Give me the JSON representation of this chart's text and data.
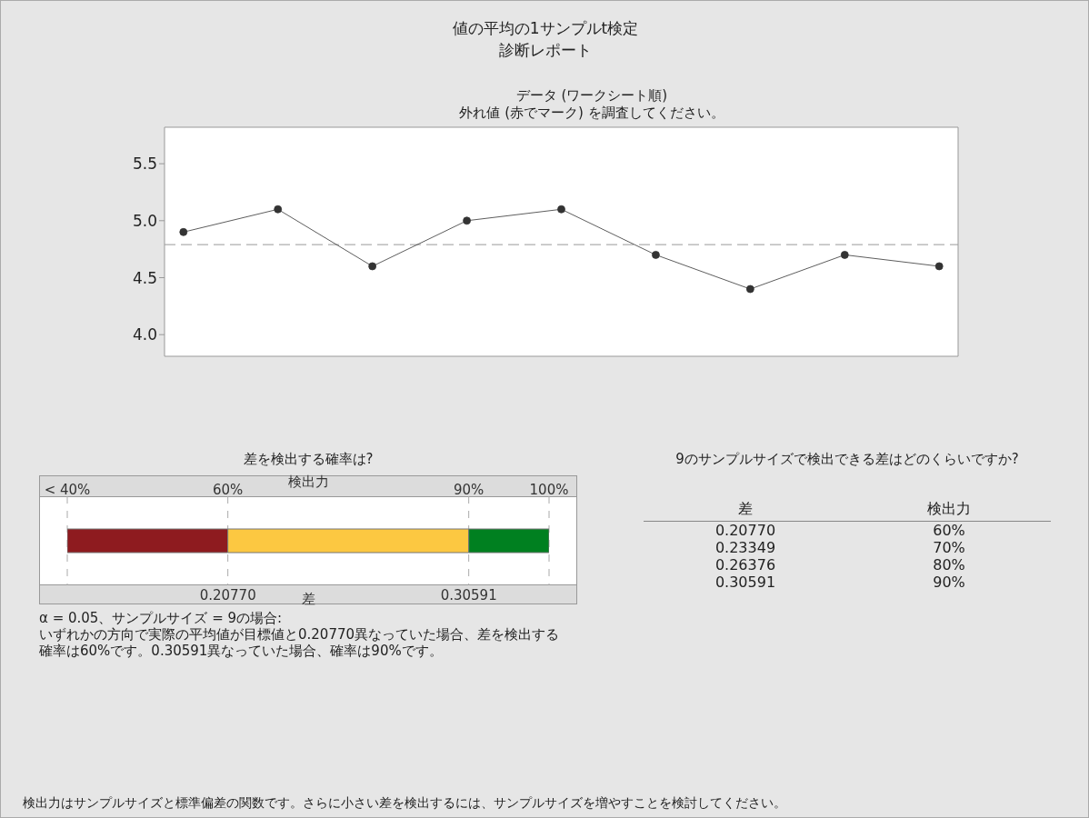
{
  "chart_data": [
    {
      "type": "other",
      "title": "値の平均の1サンプルt検定",
      "subtitle": "診断レポート",
      "annotations": [
        "検出力はサンプルサイズと標準偏差の関数です。さらに小さい差を検出するには、サンプルサイズを増やすことを検討してください。"
      ]
    },
    {
      "type": "line",
      "title": "データ (ワークシート順)",
      "subtitle": "外れ値 (赤でマーク) を調査してください。",
      "categories": [
        null,
        null,
        null,
        null,
        null,
        null,
        null,
        null,
        null
      ],
      "series": [
        {
          "color": "#333333",
          "values": [
            4.9,
            5.1,
            4.6,
            5.0,
            5.1,
            4.7,
            4.4,
            4.7,
            4.6
          ]
        }
      ],
      "ylim": [
        3.81,
        5.82
      ],
      "yticks": [
        {
          "value": 4,
          "label": "4.0"
        },
        4.5,
        {
          "value": 5,
          "label": "5.0"
        },
        5.5
      ],
      "marker": "circle",
      "line_style": "solid",
      "ref_lines": [
        {
          "axis": "y",
          "value": 4.79,
          "color": "#999999",
          "line_style": "dashed"
        }
      ]
    },
    {
      "type": "bar",
      "orientation": "horizontal",
      "title": "差を検出する確率は?",
      "categories": [
        null
      ],
      "series": [
        {
          "color": "#8e1b1f",
          "values": [
            20
          ],
          "base": [
            40
          ]
        },
        {
          "color": "#fcc841",
          "values": [
            30
          ],
          "base": [
            60
          ]
        },
        {
          "color": "#008020",
          "values": [
            10
          ],
          "base": [
            90
          ]
        }
      ],
      "xlabel": "検出力",
      "xlim": [
        40,
        100
      ],
      "xticks": [
        {
          "value": 40,
          "label": "< 40%"
        },
        {
          "value": 60,
          "label": "60%"
        },
        {
          "value": 90,
          "label": "90%"
        },
        {
          "value": 100,
          "label": "100%"
        }
      ],
      "grid": "x",
      "annotations": [
        "0.20770",
        "0.30591",
        "差",
        "α = 0.05、サンプルサイズ = 9の場合:",
        "いずれかの方向で実際の平均値が目標値と0.20770異なっていた場合、差を検出する確率は60%です。0.30591異なっていた場合、確率は90%です。"
      ]
    },
    {
      "type": "other",
      "title": "9のサンプルサイズで検出できる差はどのくらいですか?",
      "xlabel": "差",
      "ylabel": "検出力",
      "categories": [
        "0.20770",
        "0.23349",
        "0.26376",
        "0.30591"
      ],
      "values": [
        60,
        70,
        80,
        90
      ],
      "value_labels": [
        "60%",
        "70%",
        "80%",
        "90%"
      ]
    }
  ]
}
